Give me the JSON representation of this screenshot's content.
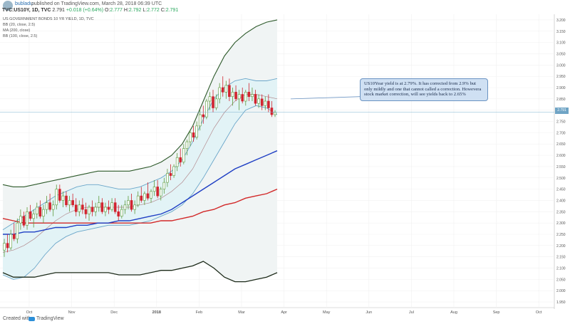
{
  "header": {
    "author": "bubladu",
    "published": "published on TradingView.com, March 28, 2018 06:39 UTC",
    "symbol": "TVC:US10Y, 1D, TVC",
    "ohlc": {
      "last": "2.791",
      "change": "+0.018 (+0.64%)",
      "o_label": "O:",
      "o": "2.777",
      "h_label": "H:",
      "h": "2.792",
      "l_label": "L:",
      "l": "2.772",
      "c_label": "C:",
      "c": "2.791"
    }
  },
  "indicators": {
    "title": "US GOVERNMENT BONDS 10 YR YIELD, 1D, TVC",
    "bb1": "BB (20, close, 2.5)",
    "ma": "MA (200, close)",
    "bb2": "BB (100, close, 2.5)"
  },
  "annotation": {
    "text": "US10Year yield is at 2.79%. It has corrected from 2.9% but only mildly and one that cannot called a correction. Howevera stock market correction, will see yields back to 2.65%"
  },
  "price_label": "2.791",
  "footer": {
    "copyright": "Created with",
    "brand": "TradingView"
  },
  "colors": {
    "candle_up": "#5c9a3b",
    "candle_down": "#d1242f",
    "bb20": "#6aa6c9",
    "bb100": "#2e5a2b",
    "ma200": "#d22828",
    "blue_ma": "#1f3fc4",
    "annotation_bg": "#cfe0f3"
  },
  "chart_data": {
    "type": "line",
    "x_ticks": [
      "Oct",
      "Nov",
      "Dec",
      "2018",
      "Feb",
      "Mar",
      "Apr",
      "May",
      "Jun",
      "Jul",
      "Aug",
      "Sep",
      "Oct"
    ],
    "y_ticks": [
      "3.200",
      "3.150",
      "3.100",
      "3.050",
      "3.000",
      "2.950",
      "2.900",
      "2.850",
      "2.800",
      "2.750",
      "2.700",
      "2.650",
      "2.600",
      "2.550",
      "2.500",
      "2.450",
      "2.400",
      "2.350",
      "2.300",
      "2.250",
      "2.200",
      "2.150",
      "2.100",
      "2.050",
      "2.000",
      "1.950"
    ],
    "ylim": [
      1.925,
      3.225
    ],
    "candles": [
      [
        2.18,
        2.23,
        2.15,
        2.21
      ],
      [
        2.21,
        2.25,
        2.17,
        2.19
      ],
      [
        2.19,
        2.27,
        2.18,
        2.25
      ],
      [
        2.25,
        2.3,
        2.22,
        2.23
      ],
      [
        2.23,
        2.32,
        2.21,
        2.3
      ],
      [
        2.3,
        2.36,
        2.27,
        2.33
      ],
      [
        2.33,
        2.35,
        2.28,
        2.29
      ],
      [
        2.29,
        2.37,
        2.27,
        2.35
      ],
      [
        2.35,
        2.38,
        2.31,
        2.32
      ],
      [
        2.32,
        2.36,
        2.28,
        2.34
      ],
      [
        2.34,
        2.39,
        2.32,
        2.37
      ],
      [
        2.37,
        2.4,
        2.32,
        2.33
      ],
      [
        2.33,
        2.38,
        2.3,
        2.36
      ],
      [
        2.36,
        2.42,
        2.34,
        2.39
      ],
      [
        2.39,
        2.43,
        2.35,
        2.36
      ],
      [
        2.36,
        2.4,
        2.33,
        2.38
      ],
      [
        2.38,
        2.47,
        2.36,
        2.45
      ],
      [
        2.45,
        2.47,
        2.39,
        2.4
      ],
      [
        2.4,
        2.44,
        2.37,
        2.42
      ],
      [
        2.42,
        2.44,
        2.37,
        2.38
      ],
      [
        2.38,
        2.42,
        2.35,
        2.4
      ],
      [
        2.4,
        2.43,
        2.37,
        2.38
      ],
      [
        2.38,
        2.41,
        2.33,
        2.35
      ],
      [
        2.35,
        2.4,
        2.33,
        2.38
      ],
      [
        2.38,
        2.41,
        2.34,
        2.36
      ],
      [
        2.36,
        2.39,
        2.32,
        2.34
      ],
      [
        2.34,
        2.38,
        2.31,
        2.37
      ],
      [
        2.37,
        2.4,
        2.33,
        2.35
      ],
      [
        2.35,
        2.39,
        2.33,
        2.37
      ],
      [
        2.37,
        2.42,
        2.35,
        2.39
      ],
      [
        2.39,
        2.41,
        2.34,
        2.35
      ],
      [
        2.35,
        2.39,
        2.33,
        2.37
      ],
      [
        2.37,
        2.4,
        2.34,
        2.36
      ],
      [
        2.36,
        2.41,
        2.35,
        2.39
      ],
      [
        2.39,
        2.41,
        2.34,
        2.35
      ],
      [
        2.35,
        2.38,
        2.31,
        2.33
      ],
      [
        2.33,
        2.38,
        2.32,
        2.36
      ],
      [
        2.36,
        2.4,
        2.34,
        2.38
      ],
      [
        2.38,
        2.42,
        2.36,
        2.4
      ],
      [
        2.4,
        2.43,
        2.35,
        2.36
      ],
      [
        2.36,
        2.4,
        2.34,
        2.38
      ],
      [
        2.38,
        2.44,
        2.37,
        2.42
      ],
      [
        2.42,
        2.46,
        2.39,
        2.4
      ],
      [
        2.4,
        2.44,
        2.38,
        2.43
      ],
      [
        2.43,
        2.48,
        2.4,
        2.41
      ],
      [
        2.41,
        2.45,
        2.39,
        2.44
      ],
      [
        2.44,
        2.49,
        2.42,
        2.46
      ],
      [
        2.46,
        2.49,
        2.41,
        2.42
      ],
      [
        2.42,
        2.46,
        2.4,
        2.45
      ],
      [
        2.45,
        2.5,
        2.43,
        2.48
      ],
      [
        2.48,
        2.54,
        2.46,
        2.52
      ],
      [
        2.52,
        2.56,
        2.49,
        2.51
      ],
      [
        2.51,
        2.56,
        2.5,
        2.55
      ],
      [
        2.55,
        2.61,
        2.53,
        2.59
      ],
      [
        2.59,
        2.63,
        2.55,
        2.57
      ],
      [
        2.57,
        2.65,
        2.56,
        2.63
      ],
      [
        2.63,
        2.67,
        2.6,
        2.66
      ],
      [
        2.66,
        2.71,
        2.64,
        2.7
      ],
      [
        2.7,
        2.73,
        2.66,
        2.68
      ],
      [
        2.68,
        2.75,
        2.67,
        2.73
      ],
      [
        2.73,
        2.8,
        2.71,
        2.78
      ],
      [
        2.78,
        2.82,
        2.74,
        2.77
      ],
      [
        2.77,
        2.85,
        2.76,
        2.84
      ],
      [
        2.84,
        2.88,
        2.8,
        2.86
      ],
      [
        2.86,
        2.89,
        2.79,
        2.81
      ],
      [
        2.81,
        2.87,
        2.8,
        2.85
      ],
      [
        2.85,
        2.92,
        2.83,
        2.9
      ],
      [
        2.9,
        2.95,
        2.86,
        2.88
      ],
      [
        2.88,
        2.93,
        2.85,
        2.91
      ],
      [
        2.91,
        2.94,
        2.84,
        2.86
      ],
      [
        2.86,
        2.9,
        2.82,
        2.88
      ],
      [
        2.88,
        2.91,
        2.84,
        2.85
      ],
      [
        2.85,
        2.89,
        2.8,
        2.87
      ],
      [
        2.87,
        2.9,
        2.83,
        2.84
      ],
      [
        2.84,
        2.89,
        2.82,
        2.88
      ],
      [
        2.88,
        2.92,
        2.84,
        2.86
      ],
      [
        2.86,
        2.9,
        2.84,
        2.87
      ],
      [
        2.87,
        2.89,
        2.82,
        2.83
      ],
      [
        2.83,
        2.87,
        2.81,
        2.85
      ],
      [
        2.85,
        2.87,
        2.8,
        2.82
      ],
      [
        2.82,
        2.86,
        2.8,
        2.84
      ],
      [
        2.84,
        2.87,
        2.79,
        2.81
      ],
      [
        2.81,
        2.84,
        2.77,
        2.78
      ],
      [
        2.78,
        2.8,
        2.77,
        2.79
      ]
    ],
    "bb20_upper": [
      2.27,
      2.3,
      2.33,
      2.36,
      2.39,
      2.42,
      2.44,
      2.46,
      2.47,
      2.47,
      2.46,
      2.45,
      2.45,
      2.46,
      2.48,
      2.5,
      2.53,
      2.58,
      2.66,
      2.76,
      2.85,
      2.9,
      2.93,
      2.94,
      2.93,
      2.93,
      2.94
    ],
    "bb20_lower": [
      2.07,
      2.05,
      2.06,
      2.1,
      2.16,
      2.21,
      2.24,
      2.26,
      2.27,
      2.28,
      2.29,
      2.29,
      2.29,
      2.3,
      2.31,
      2.33,
      2.35,
      2.38,
      2.43,
      2.5,
      2.58,
      2.66,
      2.74,
      2.8,
      2.82,
      2.81,
      2.78
    ],
    "bb20_mid": [
      2.17,
      2.18,
      2.2,
      2.23,
      2.27,
      2.31,
      2.34,
      2.36,
      2.37,
      2.37,
      2.37,
      2.37,
      2.37,
      2.38,
      2.39,
      2.41,
      2.44,
      2.48,
      2.54,
      2.63,
      2.72,
      2.79,
      2.84,
      2.87,
      2.87,
      2.86,
      2.85
    ],
    "bb100_upper": [
      2.47,
      2.46,
      2.46,
      2.47,
      2.48,
      2.49,
      2.5,
      2.51,
      2.52,
      2.53,
      2.53,
      2.53,
      2.53,
      2.54,
      2.55,
      2.57,
      2.6,
      2.65,
      2.73,
      2.84,
      2.95,
      3.04,
      3.1,
      3.14,
      3.17,
      3.19,
      3.2
    ],
    "bb100_lower": [
      2.08,
      2.06,
      2.06,
      2.06,
      2.07,
      2.08,
      2.08,
      2.08,
      2.08,
      2.08,
      2.08,
      2.07,
      2.07,
      2.07,
      2.08,
      2.09,
      2.09,
      2.1,
      2.11,
      2.13,
      2.1,
      2.06,
      2.04,
      2.04,
      2.05,
      2.06,
      2.08
    ],
    "ma_blue": [
      2.25,
      2.25,
      2.26,
      2.26,
      2.27,
      2.28,
      2.28,
      2.29,
      2.29,
      2.3,
      2.3,
      2.31,
      2.31,
      2.32,
      2.33,
      2.34,
      2.36,
      2.39,
      2.42,
      2.45,
      2.48,
      2.51,
      2.54,
      2.56,
      2.58,
      2.6,
      2.62
    ],
    "ma_red": [
      2.32,
      2.31,
      2.3,
      2.3,
      2.3,
      2.3,
      2.3,
      2.3,
      2.3,
      2.3,
      2.3,
      2.3,
      2.3,
      2.3,
      2.3,
      2.31,
      2.31,
      2.32,
      2.33,
      2.35,
      2.36,
      2.38,
      2.39,
      2.41,
      2.42,
      2.43,
      2.45
    ],
    "last_price": 2.791
  }
}
